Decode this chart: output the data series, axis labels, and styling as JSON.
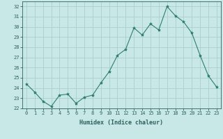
{
  "x": [
    0,
    1,
    2,
    3,
    4,
    5,
    6,
    7,
    8,
    9,
    10,
    11,
    12,
    13,
    14,
    15,
    16,
    17,
    18,
    19,
    20,
    21,
    22,
    23
  ],
  "y": [
    24.4,
    23.6,
    22.7,
    22.2,
    23.3,
    23.4,
    22.5,
    23.1,
    23.3,
    24.5,
    25.6,
    27.2,
    27.8,
    29.9,
    29.2,
    30.3,
    29.7,
    32.0,
    31.1,
    30.5,
    29.4,
    27.2,
    25.2,
    24.1
  ],
  "line_color": "#2e7d6e",
  "marker": "*",
  "marker_size": 3,
  "bg_color": "#c8e8e8",
  "grid_color": "#aacece",
  "xlabel": "Humidex (Indice chaleur)",
  "ylabel": "",
  "ylim": [
    22,
    32.5
  ],
  "xlim": [
    -0.5,
    23.5
  ],
  "yticks": [
    22,
    23,
    24,
    25,
    26,
    27,
    28,
    29,
    30,
    31,
    32
  ],
  "xticks": [
    0,
    1,
    2,
    3,
    4,
    5,
    6,
    7,
    8,
    9,
    10,
    11,
    12,
    13,
    14,
    15,
    16,
    17,
    18,
    19,
    20,
    21,
    22,
    23
  ],
  "tick_color": "#2e5f5f",
  "label_color": "#2e5f5f",
  "axis_color": "#2e5f5f",
  "tick_fontsize": 5.0,
  "xlabel_fontsize": 6.0
}
